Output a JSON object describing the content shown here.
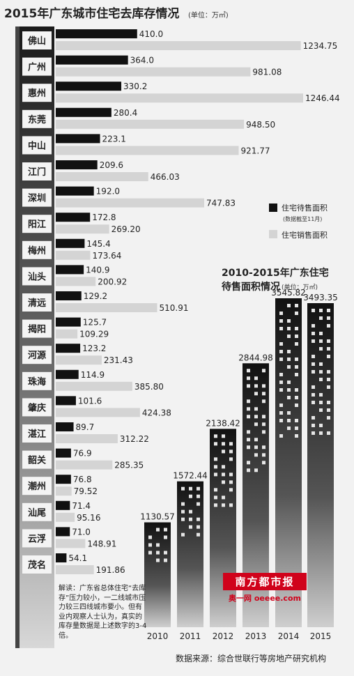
{
  "chart_data": [
    {
      "type": "bar",
      "title": "2015年广东城市住宅去库存情况",
      "unit": "(单位：万㎡)",
      "categories": [
        "佛山",
        "广州",
        "惠州",
        "东莞",
        "中山",
        "江门",
        "深圳",
        "阳江",
        "梅州",
        "汕头",
        "清远",
        "揭阳",
        "河源",
        "珠海",
        "肇庆",
        "湛江",
        "韶关",
        "潮州",
        "汕尾",
        "云浮",
        "茂名"
      ],
      "series": [
        {
          "name": "住宅待售面积",
          "note": "(数据截至11月)",
          "color": "#111111",
          "values": [
            410.0,
            364.0,
            330.2,
            280.4,
            223.1,
            209.6,
            192.0,
            172.8,
            145.4,
            140.9,
            129.2,
            125.7,
            123.2,
            114.9,
            101.6,
            89.7,
            76.9,
            76.8,
            71.4,
            71.0,
            54.1
          ],
          "labels": [
            "410.0",
            "364.0",
            "330.2",
            "280.4",
            "223.1",
            "209.6",
            "192.0",
            "172.8",
            "145.4",
            "140.9",
            "129.2",
            "125.7",
            "123.2",
            "114.9",
            "101.6",
            "89.7",
            "76.9",
            "76.8",
            "71.4",
            "71.0",
            "54.1"
          ]
        },
        {
          "name": "住宅销售面积",
          "color": "#d4d4d4",
          "values": [
            1234.75,
            981.08,
            1246.44,
            948.5,
            921.77,
            466.03,
            747.83,
            269.2,
            173.64,
            200.92,
            510.91,
            109.29,
            231.43,
            385.8,
            424.38,
            312.22,
            285.35,
            79.52,
            95.16,
            148.91,
            191.86
          ],
          "labels": [
            "1234.75",
            "981.08",
            "1246.44",
            "948.50",
            "921.77",
            "466.03",
            "747.83",
            "269.20",
            "173.64",
            "200.92",
            "510.91",
            "109.29",
            "231.43",
            "385.80",
            "424.38",
            "312.22",
            "285.35",
            "79.52",
            "95.16",
            "148.91",
            "191.86"
          ]
        }
      ]
    },
    {
      "type": "bar",
      "title_line1": "2010-2015年广东住宅",
      "title_line2": "待售面积情况",
      "unit": "(单位：万㎡)",
      "categories": [
        "2010",
        "2011",
        "2012",
        "2013",
        "2014",
        "2015"
      ],
      "values": [
        1130.57,
        1572.44,
        2138.42,
        2844.98,
        3545.82,
        3493.35
      ],
      "labels": [
        "1130.57",
        "1572.44",
        "2138.42",
        "2844.98",
        "3545.82",
        "3493.35"
      ]
    }
  ],
  "note": "解读：广东省总体住宅“去库存”压力较小，一二线城市压力较三四线城市要小。但有业内观察人士认为，真实的库存量数据是上述数字的3-4倍。",
  "source": "数据来源：综合世联行等房地产研究机构",
  "logo": {
    "top": "南方都市报",
    "bottom": "奥一网 oeeee.com"
  }
}
